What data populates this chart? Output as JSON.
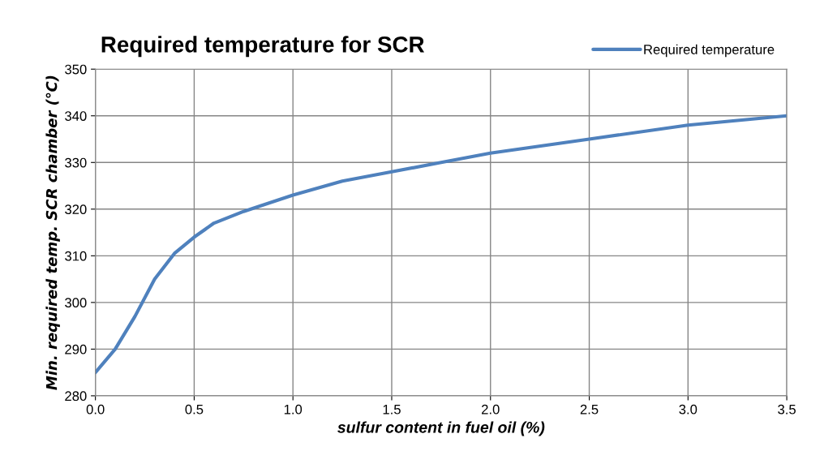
{
  "chart_data": {
    "type": "line",
    "title": "Required temperature for SCR",
    "xlabel": "sulfur content in fuel oil (%)",
    "ylabel": "Min. required temp. SCR chamber (℃)",
    "x": [
      0,
      0.1,
      0.2,
      0.3,
      0.4,
      0.5,
      0.6,
      0.75,
      1.0,
      1.25,
      1.5,
      1.75,
      2.0,
      2.5,
      3.0,
      3.5
    ],
    "series": [
      {
        "name": "Required temperature",
        "color": "#4f81bd",
        "values": [
          285,
          290,
          297,
          305,
          310.5,
          314,
          317,
          319.5,
          323,
          326,
          328,
          330,
          332,
          335,
          338,
          340
        ]
      }
    ],
    "xlim": [
      0,
      3.5
    ],
    "xticks": [
      {
        "value": 0,
        "label": "0.0"
      },
      {
        "value": 0.5,
        "label": "0.5"
      },
      {
        "value": 1,
        "label": "1.0"
      },
      {
        "value": 1.5,
        "label": "1.5"
      },
      {
        "value": 2,
        "label": "2.0"
      },
      {
        "value": 2.5,
        "label": "2.5"
      },
      {
        "value": 3,
        "label": "3.0"
      },
      {
        "value": 3.5,
        "label": "3.5"
      }
    ],
    "ylim": [
      280,
      350
    ],
    "yticks": [
      280,
      290,
      300,
      310,
      320,
      330,
      340,
      350
    ],
    "grid": true,
    "legend": "top right",
    "marker": "none",
    "line_style": "solid"
  }
}
